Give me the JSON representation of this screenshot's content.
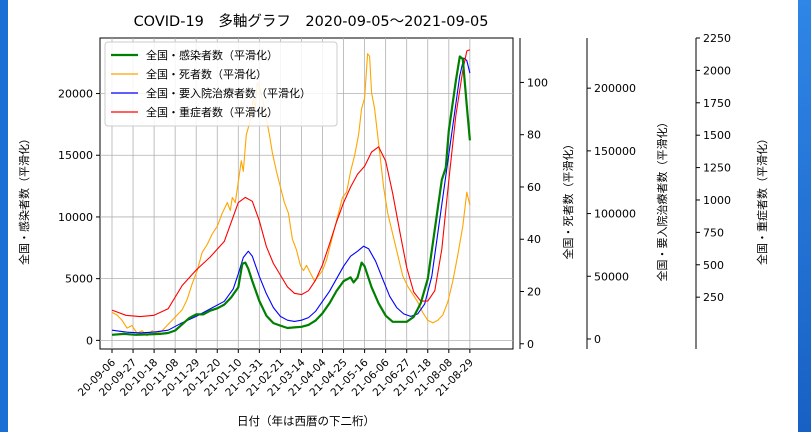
{
  "chart_data": {
    "type": "line",
    "title": "COVID-19　多軸グラフ　2020-09-05～2021-09-05",
    "xlabel": "日付（年は西暦の下二桁）",
    "x_ticks": [
      "20-09-06",
      "20-09-27",
      "20-10-18",
      "20-11-08",
      "20-11-29",
      "20-12-20",
      "21-01-10",
      "21-01-31",
      "21-02-21",
      "21-03-14",
      "21-04-04",
      "21-04-25",
      "21-05-16",
      "21-06-06",
      "21-06-27",
      "21-07-18",
      "21-08-08",
      "21-08-29"
    ],
    "axes": [
      {
        "label": "全国・感染者数（平滑化）",
        "ylim": [
          -700,
          24500
        ],
        "ticks": [
          0,
          5000,
          10000,
          15000,
          20000
        ],
        "tick_labels": [
          "0",
          "5000",
          "10000",
          "15000",
          "20000"
        ]
      },
      {
        "label": "全国・死者数（平滑化）",
        "ylim": [
          -2,
          117
        ],
        "ticks": [
          0,
          20,
          40,
          60,
          80,
          100
        ],
        "tick_labels": [
          "0",
          "20",
          "40",
          "60",
          "80",
          "100"
        ]
      },
      {
        "label": "全国・要入院治療者数（平滑化）",
        "ylim": [
          -8000,
          240000
        ],
        "ticks": [
          0,
          50000,
          100000,
          150000,
          200000
        ],
        "tick_labels": [
          "0",
          "50000",
          "100000",
          "150000",
          "200000"
        ]
      },
      {
        "label": "全国・重症者数（平滑化）",
        "ylim": [
          -150,
          2250
        ],
        "ticks": [
          250,
          500,
          750,
          1000,
          1250,
          1500,
          1750,
          2000,
          2250
        ],
        "tick_labels": [
          "250",
          "500",
          "750",
          "1000",
          "1250",
          "1500",
          "1750",
          "2000",
          "2250"
        ]
      }
    ],
    "legend": {
      "position": "top-left",
      "entries": [
        "全国・感染者数（平滑化）",
        "全国・死者数（平滑化）",
        "全国・要入院治療者数（平滑化）",
        "全国・重症者数（平滑化）"
      ]
    },
    "grid": true,
    "series": [
      {
        "name": "全国・感染者数（平滑化）",
        "axis": 0,
        "color": "#008000",
        "points": [
          [
            0,
            450
          ],
          [
            12,
            520
          ],
          [
            24,
            450
          ],
          [
            36,
            480
          ],
          [
            48,
            520
          ],
          [
            56,
            600
          ],
          [
            63,
            800
          ],
          [
            70,
            1300
          ],
          [
            77,
            1800
          ],
          [
            84,
            2100
          ],
          [
            91,
            2100
          ],
          [
            98,
            2400
          ],
          [
            105,
            2600
          ],
          [
            112,
            2900
          ],
          [
            119,
            3500
          ],
          [
            126,
            4300
          ],
          [
            130,
            6200
          ],
          [
            133,
            6300
          ],
          [
            136,
            5800
          ],
          [
            140,
            4800
          ],
          [
            147,
            3200
          ],
          [
            154,
            2000
          ],
          [
            161,
            1400
          ],
          [
            168,
            1200
          ],
          [
            175,
            1000
          ],
          [
            182,
            1050
          ],
          [
            189,
            1100
          ],
          [
            196,
            1250
          ],
          [
            203,
            1600
          ],
          [
            210,
            2200
          ],
          [
            217,
            3000
          ],
          [
            224,
            4000
          ],
          [
            231,
            4800
          ],
          [
            238,
            5100
          ],
          [
            241,
            4700
          ],
          [
            245,
            5100
          ],
          [
            249,
            6300
          ],
          [
            252,
            6000
          ],
          [
            259,
            4300
          ],
          [
            266,
            3000
          ],
          [
            273,
            2000
          ],
          [
            280,
            1500
          ],
          [
            287,
            1500
          ],
          [
            294,
            1500
          ],
          [
            301,
            1900
          ],
          [
            308,
            3000
          ],
          [
            315,
            5000
          ],
          [
            322,
            9000
          ],
          [
            329,
            13000
          ],
          [
            333,
            14000
          ],
          [
            336,
            17000
          ],
          [
            343,
            21000
          ],
          [
            347,
            23000
          ],
          [
            350,
            22800
          ],
          [
            354,
            19000
          ],
          [
            357,
            16200
          ]
        ]
      },
      {
        "name": "全国・死者数（平滑化）",
        "axis": 1,
        "color": "#ffa500",
        "points": [
          [
            0,
            12
          ],
          [
            5,
            11
          ],
          [
            10,
            9
          ],
          [
            15,
            6
          ],
          [
            20,
            7
          ],
          [
            25,
            4
          ],
          [
            30,
            5
          ],
          [
            35,
            3
          ],
          [
            40,
            5
          ],
          [
            45,
            4
          ],
          [
            50,
            5
          ],
          [
            55,
            7
          ],
          [
            60,
            9
          ],
          [
            65,
            11
          ],
          [
            70,
            13
          ],
          [
            75,
            17
          ],
          [
            80,
            23
          ],
          [
            85,
            28
          ],
          [
            90,
            35
          ],
          [
            95,
            38
          ],
          [
            100,
            42
          ],
          [
            105,
            45
          ],
          [
            110,
            50
          ],
          [
            115,
            54
          ],
          [
            118,
            51
          ],
          [
            120,
            56
          ],
          [
            123,
            54
          ],
          [
            126,
            62
          ],
          [
            129,
            70
          ],
          [
            131,
            66
          ],
          [
            134,
            80
          ],
          [
            137,
            84
          ],
          [
            139,
            88
          ],
          [
            141,
            94
          ],
          [
            143,
            90
          ],
          [
            145,
            100
          ],
          [
            148,
            97
          ],
          [
            151,
            92
          ],
          [
            154,
            86
          ],
          [
            157,
            80
          ],
          [
            160,
            73
          ],
          [
            164,
            66
          ],
          [
            168,
            60
          ],
          [
            172,
            54
          ],
          [
            176,
            50
          ],
          [
            180,
            40
          ],
          [
            184,
            36
          ],
          [
            188,
            30
          ],
          [
            191,
            28
          ],
          [
            194,
            30
          ],
          [
            198,
            27
          ],
          [
            202,
            24
          ],
          [
            206,
            26
          ],
          [
            210,
            28
          ],
          [
            214,
            32
          ],
          [
            218,
            38
          ],
          [
            222,
            44
          ],
          [
            226,
            50
          ],
          [
            230,
            56
          ],
          [
            234,
            58
          ],
          [
            238,
            66
          ],
          [
            242,
            72
          ],
          [
            246,
            80
          ],
          [
            249,
            90
          ],
          [
            252,
            94
          ],
          [
            255,
            111
          ],
          [
            257,
            110
          ],
          [
            259,
            96
          ],
          [
            262,
            90
          ],
          [
            265,
            80
          ],
          [
            268,
            70
          ],
          [
            271,
            60
          ],
          [
            275,
            50
          ],
          [
            280,
            42
          ],
          [
            285,
            34
          ],
          [
            290,
            26
          ],
          [
            295,
            22
          ],
          [
            300,
            19
          ],
          [
            305,
            16
          ],
          [
            310,
            12
          ],
          [
            315,
            9
          ],
          [
            320,
            8
          ],
          [
            325,
            9
          ],
          [
            330,
            11
          ],
          [
            335,
            16
          ],
          [
            340,
            24
          ],
          [
            345,
            34
          ],
          [
            350,
            45
          ],
          [
            354,
            58
          ],
          [
            357,
            53
          ]
        ]
      },
      {
        "name": "全国・要入院治療者数（平滑化）",
        "axis": 2,
        "color": "#0000ff",
        "points": [
          [
            0,
            7000
          ],
          [
            14,
            5500
          ],
          [
            28,
            4800
          ],
          [
            42,
            5500
          ],
          [
            56,
            7000
          ],
          [
            70,
            13000
          ],
          [
            84,
            18000
          ],
          [
            98,
            24000
          ],
          [
            112,
            30000
          ],
          [
            121,
            40000
          ],
          [
            126,
            52000
          ],
          [
            131,
            65000
          ],
          [
            136,
            70000
          ],
          [
            140,
            66000
          ],
          [
            147,
            50000
          ],
          [
            154,
            36000
          ],
          [
            161,
            25000
          ],
          [
            168,
            18000
          ],
          [
            175,
            15000
          ],
          [
            182,
            14000
          ],
          [
            189,
            15000
          ],
          [
            196,
            17000
          ],
          [
            203,
            22000
          ],
          [
            210,
            30000
          ],
          [
            217,
            38000
          ],
          [
            224,
            48000
          ],
          [
            231,
            58000
          ],
          [
            238,
            66000
          ],
          [
            245,
            70000
          ],
          [
            251,
            74000
          ],
          [
            256,
            72000
          ],
          [
            263,
            62000
          ],
          [
            270,
            48000
          ],
          [
            277,
            34000
          ],
          [
            284,
            25000
          ],
          [
            291,
            20000
          ],
          [
            298,
            18000
          ],
          [
            305,
            20000
          ],
          [
            312,
            28000
          ],
          [
            319,
            50000
          ],
          [
            326,
            90000
          ],
          [
            333,
            130000
          ],
          [
            340,
            170000
          ],
          [
            347,
            210000
          ],
          [
            351,
            224000
          ],
          [
            354,
            222000
          ],
          [
            357,
            212000
          ]
        ]
      },
      {
        "name": "全国・重症者数（平滑化）",
        "axis": 3,
        "color": "#ff0000",
        "points": [
          [
            0,
            150
          ],
          [
            14,
            110
          ],
          [
            28,
            100
          ],
          [
            42,
            110
          ],
          [
            56,
            160
          ],
          [
            70,
            340
          ],
          [
            84,
            460
          ],
          [
            98,
            560
          ],
          [
            112,
            680
          ],
          [
            126,
            980
          ],
          [
            133,
            1020
          ],
          [
            140,
            990
          ],
          [
            147,
            840
          ],
          [
            154,
            640
          ],
          [
            161,
            510
          ],
          [
            168,
            420
          ],
          [
            175,
            330
          ],
          [
            182,
            280
          ],
          [
            189,
            270
          ],
          [
            196,
            300
          ],
          [
            203,
            380
          ],
          [
            210,
            500
          ],
          [
            217,
            660
          ],
          [
            224,
            830
          ],
          [
            231,
            980
          ],
          [
            238,
            1100
          ],
          [
            245,
            1200
          ],
          [
            252,
            1260
          ],
          [
            259,
            1370
          ],
          [
            266,
            1410
          ],
          [
            273,
            1300
          ],
          [
            280,
            1050
          ],
          [
            287,
            760
          ],
          [
            294,
            480
          ],
          [
            301,
            290
          ],
          [
            308,
            220
          ],
          [
            315,
            220
          ],
          [
            322,
            300
          ],
          [
            329,
            620
          ],
          [
            336,
            1150
          ],
          [
            343,
            1650
          ],
          [
            350,
            2000
          ],
          [
            354,
            2150
          ],
          [
            357,
            2160
          ]
        ]
      }
    ]
  }
}
